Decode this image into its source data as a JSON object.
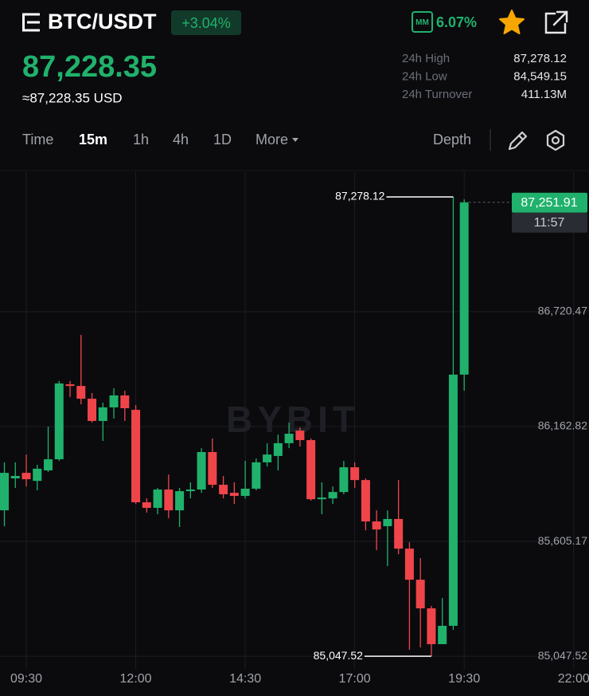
{
  "header": {
    "symbol": "BTC/USDT",
    "change": "+3.04%",
    "mm_label": "MM",
    "mm_value": "6.07%"
  },
  "price": {
    "last": "87,228.35",
    "usd": "≈87,228.35 USD"
  },
  "stats": [
    {
      "label": "24h High",
      "value": "87,278.12"
    },
    {
      "label": "24h Low",
      "value": "84,549.15"
    },
    {
      "label": "24h Turnover",
      "value": "411.13M"
    }
  ],
  "tabs": [
    "Time",
    "15m",
    "1h",
    "4h",
    "1D",
    "More"
  ],
  "active_tab": 1,
  "depth": "Depth",
  "chart_data": {
    "type": "candlestick",
    "watermark": "BYBIT",
    "x": [
      540,
      555,
      570,
      585,
      600,
      615,
      630,
      645,
      660,
      675,
      690,
      705,
      720,
      735,
      750,
      765,
      780,
      795,
      810,
      825,
      840,
      855,
      870,
      885,
      900,
      915,
      930,
      945,
      960,
      975,
      990,
      1005,
      1020,
      1035,
      1050,
      1065,
      1080,
      1095,
      1110,
      1125,
      1140,
      1155,
      1170
    ],
    "open": [
      85756,
      85911,
      85938,
      85899,
      85950,
      86004,
      86368,
      86360,
      86298,
      86190,
      86256,
      86314,
      86244,
      85795,
      85768,
      85857,
      85756,
      85849,
      85857,
      86039,
      85880,
      85841,
      85826,
      85861,
      85989,
      86020,
      86082,
      86143,
      86097,
      85810,
      85814,
      85845,
      85965,
      85903,
      85702,
      85679,
      85714,
      85570,
      85419,
      85280,
      85106,
      85195,
      86415
    ],
    "high": [
      85989,
      85989,
      86027,
      85977,
      86163,
      86384,
      86384,
      86608,
      86326,
      86279,
      86349,
      86337,
      86267,
      85814,
      85865,
      85930,
      85865,
      85892,
      86058,
      86105,
      85923,
      85892,
      85996,
      86008,
      86082,
      86124,
      86182,
      86159,
      86105,
      85892,
      85872,
      85996,
      85989,
      85911,
      85756,
      85756,
      85903,
      85601,
      85524,
      85292,
      85330,
      87278.12,
      87266
    ],
    "low": [
      85679,
      85865,
      85872,
      85853,
      85942,
      85996,
      86306,
      86271,
      86182,
      86093,
      86202,
      86190,
      85787,
      85745,
      85737,
      85718,
      85675,
      85814,
      85841,
      85865,
      85814,
      85787,
      85814,
      85853,
      85969,
      85950,
      86058,
      86066,
      85803,
      85737,
      85787,
      85834,
      85865,
      85659,
      85563,
      85485,
      85543,
      85079,
      85090,
      85047.52,
      85106,
      85175,
      86337
    ],
    "close": [
      85938,
      85923,
      85907,
      85958,
      86004,
      86372,
      86360,
      86298,
      86190,
      86256,
      86314,
      86252,
      85795,
      85768,
      85857,
      85756,
      85849,
      85857,
      86039,
      85880,
      85834,
      85826,
      85861,
      85989,
      86027,
      86082,
      86128,
      86097,
      85810,
      85818,
      85845,
      85965,
      85903,
      85702,
      85663,
      85714,
      85570,
      85419,
      85280,
      85106,
      85195,
      86415,
      87251.91
    ],
    "up_color": "#20b26c",
    "down_color": "#ef454a",
    "grid": true,
    "xlim": [
      534,
      1341
    ],
    "xticks": [
      {
        "value": 570,
        "label": "09:30"
      },
      {
        "value": 720,
        "label": "12:00"
      },
      {
        "value": 870,
        "label": "14:30"
      },
      {
        "value": 1020,
        "label": "17:00"
      },
      {
        "value": 1170,
        "label": "19:30"
      },
      {
        "value": 1320,
        "label": "22:00"
      }
    ],
    "ylim": [
      84982,
      87402
    ],
    "yticks": [
      {
        "value": 85047.52,
        "label": "85,047.52"
      },
      {
        "value": 85605.17,
        "label": "85,605.17"
      },
      {
        "value": 86162.82,
        "label": "86,162.82"
      },
      {
        "value": 86720.47,
        "label": "86,720.47"
      }
    ],
    "annotations": [
      {
        "value": 87278.12,
        "label": "87,278.12"
      },
      {
        "value": 85047.52,
        "label": "85,047.52"
      }
    ],
    "last_price_label": "87,251.91",
    "countdown": "11:57"
  }
}
